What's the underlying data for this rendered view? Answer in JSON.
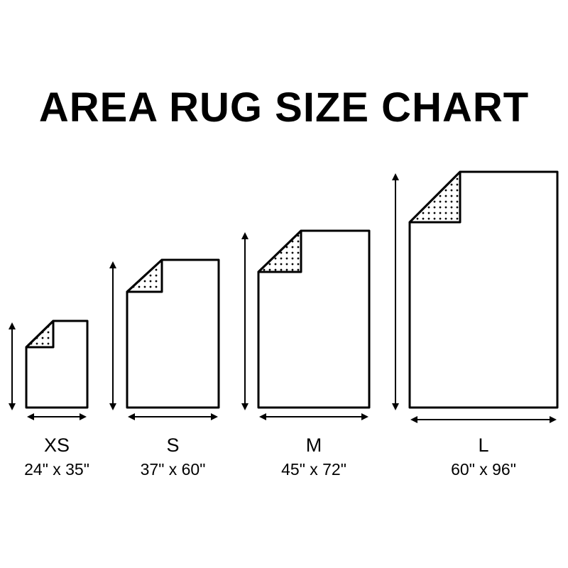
{
  "title": "AREA RUG SIZE CHART",
  "colors": {
    "stroke": "#000000",
    "background": "#ffffff"
  },
  "rugs": [
    {
      "size": "XS",
      "dimensions": "24\" x 35\"",
      "width_in": 24,
      "length_in": 35
    },
    {
      "size": "S",
      "dimensions": "37\" x 60\"",
      "width_in": 37,
      "length_in": 60
    },
    {
      "size": "M",
      "dimensions": "45\" x 72\"",
      "width_in": 45,
      "length_in": 72
    },
    {
      "size": "L",
      "dimensions": "60\" x 96\"",
      "width_in": 60,
      "length_in": 96
    }
  ]
}
